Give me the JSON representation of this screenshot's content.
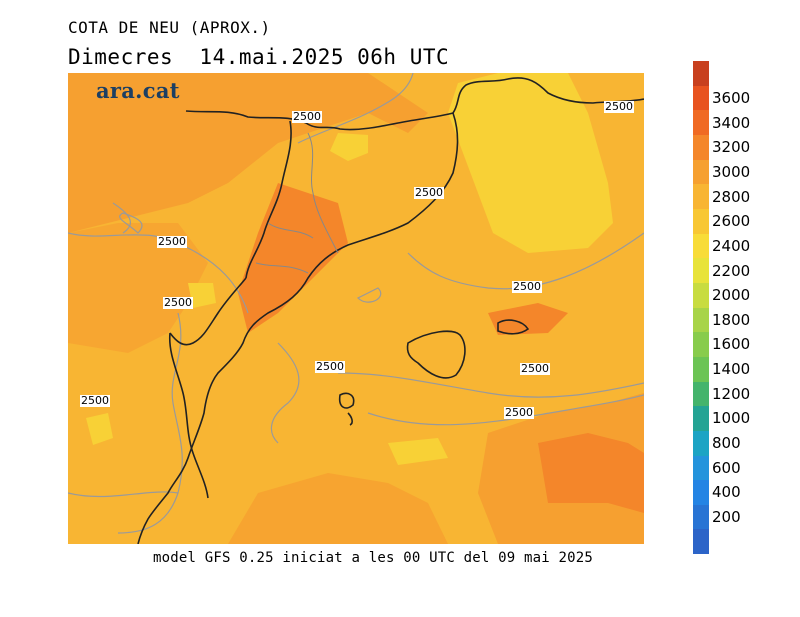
{
  "title": "COTA DE NEU (APROX.)",
  "subtitle": "Dimecres  14.mai.2025 06h UTC",
  "footer": "model GFS 0.25 iniciat a les 00 UTC del 09 mai 2025",
  "logo": "ara.cat",
  "contour_labels": [
    "2500",
    "2500",
    "2500",
    "2500",
    "2500",
    "2500",
    "2500",
    "2500",
    "2500",
    "2500"
  ],
  "scale": {
    "colors": [
      "#c8401e",
      "#e8531f",
      "#f06a23",
      "#f4862a",
      "#f6a030",
      "#f8b533",
      "#f8c734",
      "#f8dc38",
      "#e8e33a",
      "#c8dc40",
      "#a8d448",
      "#88cc4c",
      "#6cc454",
      "#44b46c",
      "#24a494",
      "#1ca4c4",
      "#2494dc",
      "#2484e4",
      "#2874d4",
      "#2c64c8"
    ],
    "labels": [
      "3600",
      "3400",
      "3200",
      "3000",
      "2800",
      "2600",
      "2400",
      "2200",
      "2000",
      "1800",
      "1600",
      "1400",
      "1200",
      "1000",
      "800",
      "600",
      "400",
      "200"
    ]
  }
}
